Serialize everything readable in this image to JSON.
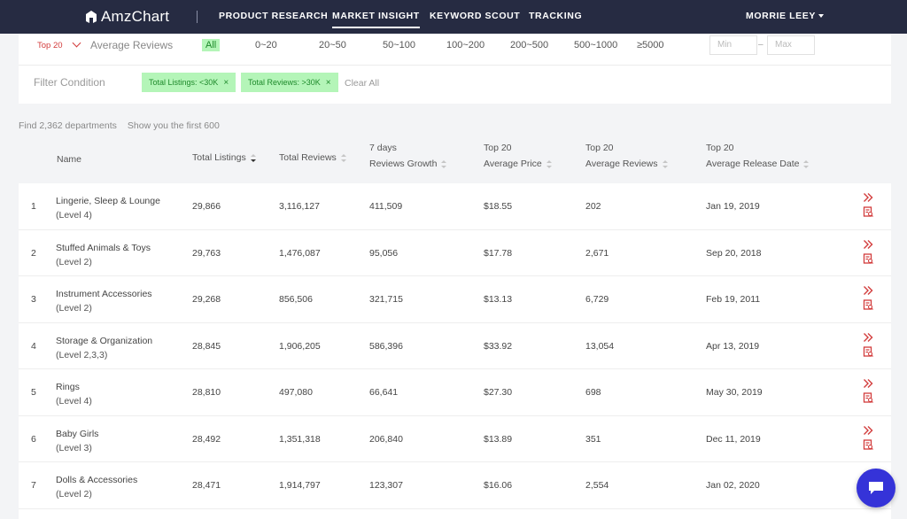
{
  "nav": {
    "logo_text": "AmzChart",
    "items": [
      "PRODUCT RESEARCH",
      "MARKET INSIGHT",
      "KEYWORD SCOUT",
      "TRACKING"
    ],
    "active": "MARKET INSIGHT",
    "user": "MORRIE LEEY"
  },
  "filter": {
    "top_select": "Top 20",
    "metric_label": "Average Reviews",
    "ranges": [
      "All",
      "0~20",
      "20~50",
      "50~100",
      "100~200",
      "200~500",
      "500~1000",
      "≥5000"
    ],
    "selected_range": "All",
    "min_placeholder": "Min",
    "max_placeholder": "Max",
    "range_dash": "–",
    "condition_label": "Filter Condition",
    "chips": [
      "Total Listings: <30K",
      "Total Reviews: >30K"
    ],
    "chip_close": "×",
    "clear_all": "Clear All"
  },
  "summary": {
    "found": "Find 2,362 departments",
    "showing": "Show you the first 600"
  },
  "table": {
    "headers": {
      "name": "Name",
      "listings": "Total Listings",
      "reviews": "Total Reviews",
      "growth_1": "7 days",
      "growth_2": "Reviews Growth",
      "price_1": "Top 20",
      "price_2": "Average Price",
      "avg_reviews_1": "Top 20",
      "avg_reviews_2": "Average Reviews",
      "release_1": "Top 20",
      "release_2": "Average Release Date"
    },
    "rows": [
      {
        "idx": "1",
        "name": "Lingerie, Sleep & Lounge",
        "level": "(Level 4)",
        "listings": "29,866",
        "reviews": "3,116,127",
        "growth": "411,509",
        "price": "$18.55",
        "avg_reviews": "202",
        "release": "Jan 19, 2019"
      },
      {
        "idx": "2",
        "name": "Stuffed Animals & Toys",
        "level": "(Level 2)",
        "listings": "29,763",
        "reviews": "1,476,087",
        "growth": "95,056",
        "price": "$17.78",
        "avg_reviews": "2,671",
        "release": "Sep 20, 2018"
      },
      {
        "idx": "3",
        "name": "Instrument Accessories",
        "level": "(Level 2)",
        "listings": "29,268",
        "reviews": "856,506",
        "growth": "321,715",
        "price": "$13.13",
        "avg_reviews": "6,729",
        "release": "Feb 19, 2011"
      },
      {
        "idx": "4",
        "name": "Storage & Organization",
        "level": "(Level 2,3,3)",
        "listings": "28,845",
        "reviews": "1,906,205",
        "growth": "586,396",
        "price": "$33.92",
        "avg_reviews": "13,054",
        "release": "Apr 13, 2019"
      },
      {
        "idx": "5",
        "name": "Rings",
        "level": "(Level 4)",
        "listings": "28,810",
        "reviews": "497,080",
        "growth": "66,641",
        "price": "$27.30",
        "avg_reviews": "698",
        "release": "May 30, 2019"
      },
      {
        "idx": "6",
        "name": "Baby Girls",
        "level": "(Level 3)",
        "listings": "28,492",
        "reviews": "1,351,318",
        "growth": "206,840",
        "price": "$13.89",
        "avg_reviews": "351",
        "release": "Dec 11, 2019"
      },
      {
        "idx": "7",
        "name": "Dolls & Accessories",
        "level": "(Level 2)",
        "listings": "28,471",
        "reviews": "1,914,797",
        "growth": "123,307",
        "price": "$16.06",
        "avg_reviews": "2,554",
        "release": "Jan 02, 2020"
      }
    ]
  },
  "colors": {
    "nav_bg": "#262b42",
    "accent_red": "#d23b3b",
    "chip_bg": "#b4f5b8",
    "chip_text": "#1e8a2b",
    "chat_bg": "#3533d8"
  },
  "icons": {
    "row_action_1": "double-chevron-right-icon",
    "row_action_2": "report-icon",
    "chat": "chat-bubble-icon"
  }
}
